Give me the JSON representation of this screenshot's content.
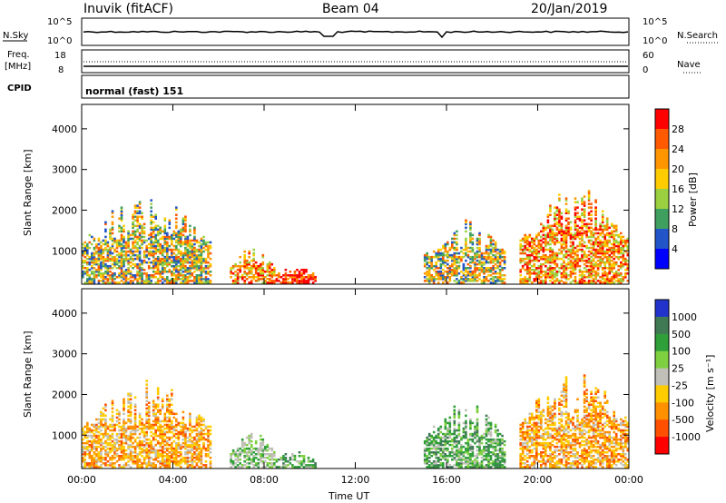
{
  "header": {
    "site": "Inuvik (fitACF)",
    "beam": "Beam 04",
    "date": "20/Jan/2019"
  },
  "top_panels": {
    "nsky_label": "N.Sky",
    "nsky_ticks": [
      "10^5",
      "10^0"
    ],
    "nsearch_label": "N.Search",
    "nsearch_ticks": [
      "10^5",
      "10^0"
    ],
    "freq_label": "Freq.",
    "freq_unit": "[MHz]",
    "freq_ticks": [
      "18",
      "8"
    ],
    "nave_label": "Nave",
    "nave_ticks": [
      "60",
      "0"
    ],
    "cpid_label": "CPID",
    "cpid_text": "normal (fast) 151"
  },
  "chart_data": [
    {
      "type": "heatmap",
      "name": "power-panel",
      "ylabel": "Slant Range [km]",
      "yticks": [
        "4000",
        "3000",
        "2000",
        "1000"
      ],
      "ylim": [
        180,
        4600
      ],
      "xticks": [
        "00:00",
        "04:00",
        "08:00",
        "12:00",
        "16:00",
        "20:00",
        "00:00"
      ],
      "colorbar_label": "Power [dB]",
      "colorbar_ticks": [
        "28",
        "24",
        "20",
        "16",
        "12",
        "8",
        "4"
      ],
      "colorbar_colors": [
        "#ff0000",
        "#ff5a00",
        "#ff9600",
        "#ffcc00",
        "#9bd040",
        "#3f9f5f",
        "#2255c8",
        "#0000ff"
      ],
      "blobs": [
        {
          "t0": 0.0,
          "t1": 5.6,
          "r0": 200,
          "r1": 2400,
          "level": "mixed"
        },
        {
          "t0": 6.5,
          "t1": 8.4,
          "r0": 200,
          "r1": 1100,
          "level": "high"
        },
        {
          "t0": 8.5,
          "t1": 10.2,
          "r0": 200,
          "r1": 650,
          "level": "max"
        },
        {
          "t0": 15.0,
          "t1": 18.6,
          "r0": 200,
          "r1": 1800,
          "level": "mixed"
        },
        {
          "t0": 19.2,
          "t1": 24.0,
          "r0": 200,
          "r1": 2600,
          "level": "high"
        }
      ]
    },
    {
      "type": "heatmap",
      "name": "velocity-panel",
      "ylabel": "Slant Range [km]",
      "yticks": [
        "4000",
        "3000",
        "2000",
        "1000"
      ],
      "ylim": [
        180,
        4600
      ],
      "xticks": [
        "00:00",
        "04:00",
        "08:00",
        "12:00",
        "16:00",
        "20:00",
        "00:00"
      ],
      "xlabel": "Time UT",
      "colorbar_label": "Velocity [m s⁻¹]",
      "colorbar_ticks": [
        "1000",
        "500",
        "100",
        "25",
        "-25",
        "-100",
        "-500",
        "-1000"
      ],
      "colorbar_colors": [
        "#2233cc",
        "#3f7a55",
        "#2f9f3a",
        "#7fd040",
        "#c0c0b8",
        "#ffcc00",
        "#ff9000",
        "#ff5000",
        "#ff0000"
      ],
      "blobs": [
        {
          "t0": 0.0,
          "t1": 5.6,
          "r0": 200,
          "r1": 2400,
          "level": "neg"
        },
        {
          "t0": 6.5,
          "t1": 8.4,
          "r0": 200,
          "r1": 1100,
          "level": "zero"
        },
        {
          "t0": 8.5,
          "t1": 10.2,
          "r0": 200,
          "r1": 650,
          "level": "pos"
        },
        {
          "t0": 15.0,
          "t1": 18.6,
          "r0": 200,
          "r1": 1800,
          "level": "pos"
        },
        {
          "t0": 19.2,
          "t1": 24.0,
          "r0": 200,
          "r1": 2600,
          "level": "neg"
        }
      ]
    }
  ]
}
